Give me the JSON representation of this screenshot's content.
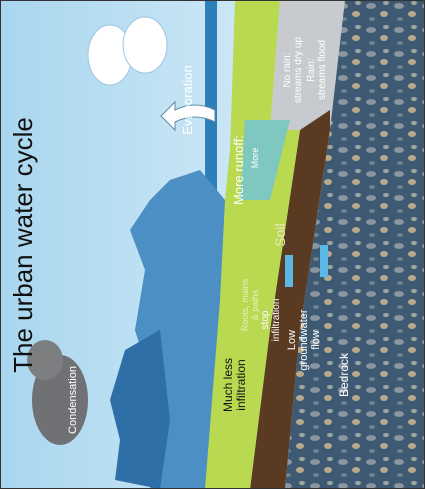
{
  "title": "The urban water cycle",
  "labels": {
    "condensation": "Condensation",
    "evaporation": "Evaporation",
    "more_runoff": "More runoff:",
    "more": "More",
    "no_rain": [
      "No rain:",
      "streams dry up"
    ],
    "rain": [
      "Rain:",
      "streams flood"
    ],
    "soil": "Soil",
    "roots": [
      "Roots, mains",
      "& paths"
    ],
    "stop": [
      "stop",
      "infiltration"
    ],
    "much_less": [
      "Much less",
      "infiltration"
    ],
    "low_groundwater": [
      "Low",
      "groundwater",
      "flow"
    ],
    "bedrock": "Bedrock"
  }
}
